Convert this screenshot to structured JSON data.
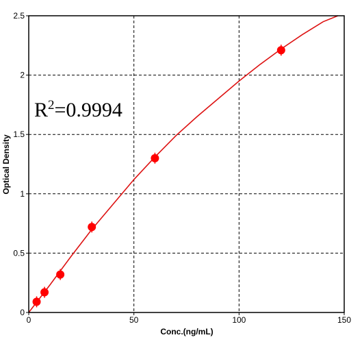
{
  "chart_data": {
    "type": "scatter",
    "title": "",
    "xlabel": "Conc.(ng/mL)",
    "ylabel": "Optical Density",
    "xlim": [
      0,
      150
    ],
    "ylim": [
      0,
      2.5
    ],
    "xticks": [
      0,
      50,
      100,
      150
    ],
    "yticks": [
      0,
      0.5,
      1,
      1.5,
      2,
      2.5
    ],
    "xtick_labels": [
      "0",
      "50",
      "100",
      "150"
    ],
    "ytick_labels": [
      "0",
      "0.5",
      "1",
      "1.5",
      "2",
      "2.5"
    ],
    "grid": true,
    "annotation": {
      "base": "R",
      "sup": "2",
      "rest": "=0.9994"
    },
    "series": [
      {
        "x": [
          3.75,
          7.5,
          15,
          30,
          60,
          120
        ],
        "y": [
          0.09,
          0.17,
          0.32,
          0.72,
          1.3,
          2.21
        ]
      }
    ],
    "fit_curve": {
      "x": [
        0,
        10,
        20,
        30,
        40,
        50,
        60,
        70,
        80,
        90,
        100,
        110,
        120,
        130,
        140,
        147
      ],
      "y": [
        0.0,
        0.23,
        0.47,
        0.7,
        0.91,
        1.12,
        1.31,
        1.49,
        1.65,
        1.8,
        1.95,
        2.09,
        2.22,
        2.34,
        2.45,
        2.5
      ]
    },
    "colors": {
      "series": "#ff0000",
      "curve": "#dd1111",
      "grid": "#000000",
      "axis": "#000000"
    }
  }
}
